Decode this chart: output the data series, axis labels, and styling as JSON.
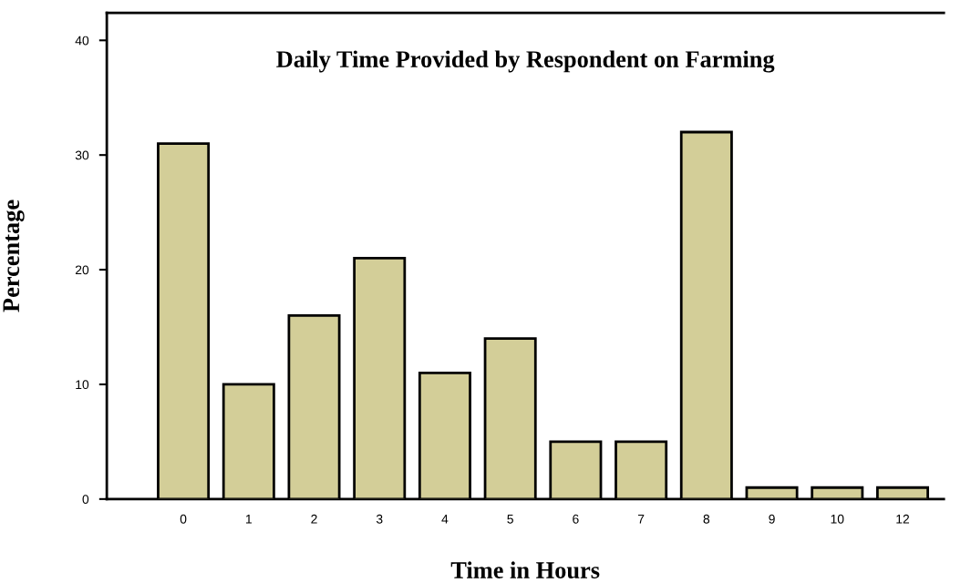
{
  "chart_data": {
    "type": "bar",
    "title": "Daily Time Provided by Respondent on Farming",
    "xlabel": "Time in Hours",
    "ylabel": "Percentage",
    "categories": [
      "0",
      "1",
      "2",
      "3",
      "4",
      "5",
      "6",
      "7",
      "8",
      "9",
      "10",
      "12"
    ],
    "values": [
      31,
      10,
      16,
      21,
      11,
      14,
      5,
      5,
      32,
      1,
      1,
      1
    ],
    "color": "#d3ce98",
    "ylim": [
      0,
      42.4
    ],
    "yticks": [
      0,
      10,
      20,
      30,
      40
    ],
    "grid": false,
    "legend": false
  }
}
